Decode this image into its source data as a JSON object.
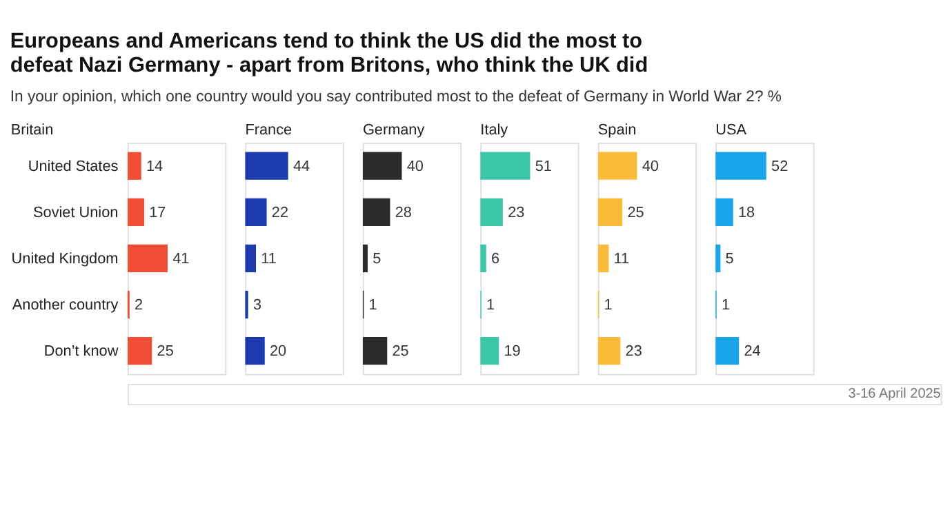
{
  "chart_data": [
    {
      "type": "other",
      "title": "Europeans and Americans tend to think the US did the most to defeat Nazi Germany - apart from Britons, who think the UK did",
      "subtitle": "In your opinion, which one country would you say contributed most to the defeat of Germany in World War 2? %",
      "annotations": [
        "3-16 April 2025"
      ]
    },
    {
      "type": "bar",
      "orientation": "horizontal",
      "title": "Britain",
      "categories": [
        "United States",
        "Soviet Union",
        "United Kingdom",
        "Another country",
        "Don’t know"
      ],
      "values": [
        14,
        17,
        41,
        2,
        25
      ],
      "color": "#f04e37",
      "xlim": [
        0,
        100
      ],
      "data_labels": true,
      "tick_labels": "y"
    },
    {
      "type": "bar",
      "orientation": "horizontal",
      "title": "France",
      "values": [
        44,
        22,
        11,
        3,
        20
      ],
      "color": "#1a3aad",
      "xlim": [
        0,
        100
      ],
      "data_labels": true,
      "tick_labels": false
    },
    {
      "type": "bar",
      "orientation": "horizontal",
      "title": "Germany",
      "values": [
        40,
        28,
        5,
        1,
        25
      ],
      "color": "#2b2b2b",
      "xlim": [
        0,
        100
      ],
      "data_labels": true,
      "tick_labels": false
    },
    {
      "type": "bar",
      "orientation": "horizontal",
      "title": "Italy",
      "values": [
        51,
        23,
        6,
        1,
        19
      ],
      "color": "#3cc8a8",
      "xlim": [
        0,
        100
      ],
      "data_labels": true,
      "tick_labels": false
    },
    {
      "type": "bar",
      "orientation": "horizontal",
      "title": "Spain",
      "values": [
        40,
        25,
        11,
        1,
        23
      ],
      "color": "#fbbb3a",
      "xlim": [
        0,
        100
      ],
      "data_labels": true,
      "tick_labels": false
    },
    {
      "type": "bar",
      "orientation": "horizontal",
      "title": "USA",
      "values": [
        52,
        18,
        5,
        1,
        24
      ],
      "color": "#1aa5e8",
      "xlim": [
        0,
        100
      ],
      "data_labels": true,
      "tick_labels": false
    }
  ]
}
